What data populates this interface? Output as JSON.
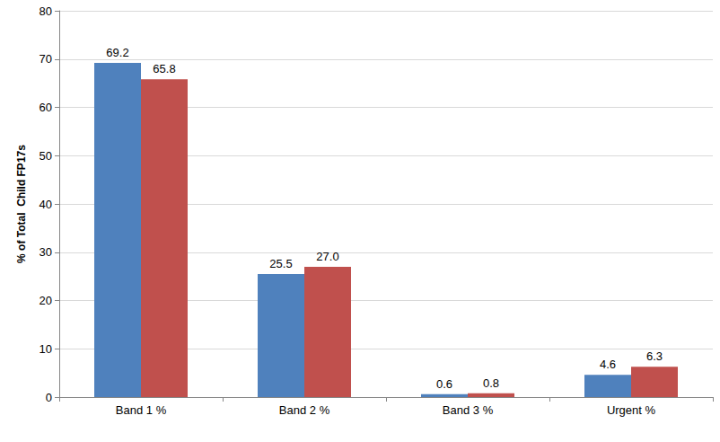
{
  "chart_data": {
    "type": "bar",
    "y_label": "% of Total  Child FP17s",
    "categories": [
      "Band 1 %",
      "Band 2 %",
      "Band 3 %",
      "Urgent %"
    ],
    "series": [
      {
        "color": "#4f81bd",
        "values": [
          69.2,
          25.5,
          0.6,
          4.6
        ]
      },
      {
        "color": "#c0504d",
        "values": [
          65.8,
          27.0,
          0.8,
          6.3
        ],
        "value_labels": [
          "65.8",
          "27.0",
          "0.8",
          "6.3"
        ]
      }
    ],
    "ylim": [
      0,
      80
    ],
    "yticks": [
      0,
      10,
      20,
      30,
      40,
      50,
      60,
      70,
      80
    ],
    "grid": true,
    "data_labels": true
  }
}
